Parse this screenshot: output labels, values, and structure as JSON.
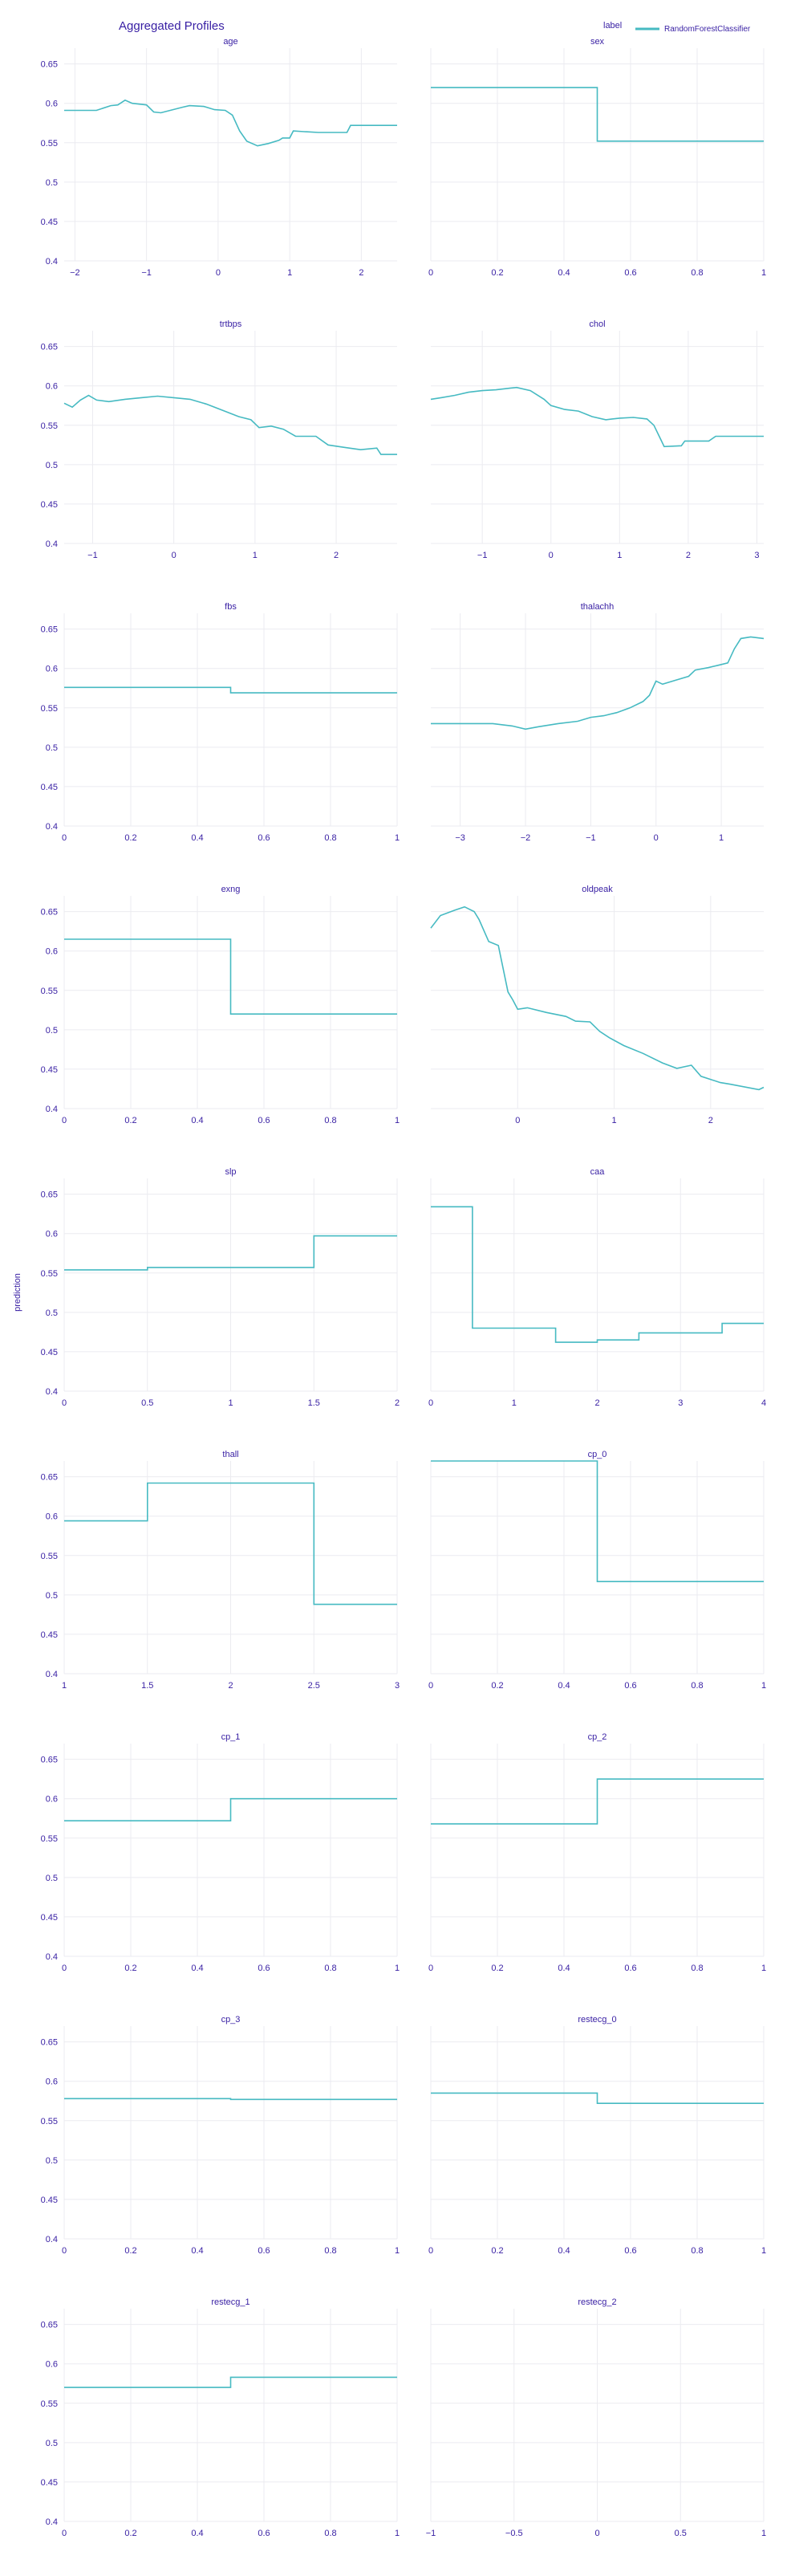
{
  "colors": {
    "series": "#46bac2",
    "text": "#371ea3",
    "grid": "#ebebf0"
  },
  "chart_data": {
    "type": "line",
    "title": "Aggregated Profiles",
    "ylabel": "prediction",
    "legend": {
      "title": "label",
      "position": "top-right",
      "entries": [
        "RandomForestClassifier"
      ]
    },
    "ylim": [
      0.4,
      0.67
    ],
    "yticks": [
      0.4,
      0.45,
      0.5,
      0.55,
      0.6,
      0.65
    ],
    "grid": true,
    "panels": [
      {
        "name": "age",
        "xlim": [
          -2.15,
          2.5
        ],
        "xticks": [
          -2,
          -1,
          0,
          1,
          2
        ],
        "xtick_labels": [
          "−2",
          "−1",
          "0",
          "1",
          "2"
        ],
        "x": [
          -2.15,
          -1.7,
          -1.5,
          -1.4,
          -1.3,
          -1.2,
          -1.0,
          -0.9,
          -0.8,
          -0.5,
          -0.4,
          -0.2,
          -0.05,
          0.1,
          0.2,
          0.3,
          0.4,
          0.55,
          0.7,
          0.85,
          0.9,
          1.0,
          1.05,
          1.2,
          1.4,
          1.8,
          1.85,
          2.5
        ],
        "y": [
          0.591,
          0.591,
          0.597,
          0.598,
          0.604,
          0.6,
          0.598,
          0.589,
          0.588,
          0.595,
          0.597,
          0.596,
          0.592,
          0.591,
          0.585,
          0.565,
          0.552,
          0.546,
          0.549,
          0.553,
          0.556,
          0.556,
          0.565,
          0.564,
          0.563,
          0.563,
          0.572,
          0.572
        ]
      },
      {
        "name": "sex",
        "xlim": [
          0,
          1
        ],
        "xticks": [
          0,
          0.2,
          0.4,
          0.6,
          0.8,
          1
        ],
        "xtick_labels": [
          "0",
          "0.2",
          "0.4",
          "0.6",
          "0.8",
          "1"
        ],
        "step": true,
        "x": [
          0,
          0.5,
          0.5,
          1
        ],
        "y": [
          0.62,
          0.62,
          0.552,
          0.552
        ]
      },
      {
        "name": "trtbps",
        "xlim": [
          -1.35,
          2.75
        ],
        "xticks": [
          -1,
          0,
          1,
          2
        ],
        "xtick_labels": [
          "−1",
          "0",
          "1",
          "2"
        ],
        "x": [
          -1.35,
          -1.25,
          -1.15,
          -1.05,
          -0.95,
          -0.8,
          -0.6,
          -0.4,
          -0.2,
          0.0,
          0.2,
          0.4,
          0.6,
          0.8,
          0.95,
          1.05,
          1.2,
          1.35,
          1.5,
          1.75,
          1.9,
          2.1,
          2.3,
          2.5,
          2.55,
          2.75
        ],
        "y": [
          0.578,
          0.573,
          0.582,
          0.588,
          0.582,
          0.58,
          0.583,
          0.585,
          0.587,
          0.585,
          0.583,
          0.577,
          0.569,
          0.561,
          0.557,
          0.547,
          0.549,
          0.545,
          0.536,
          0.536,
          0.525,
          0.522,
          0.519,
          0.521,
          0.513,
          0.513
        ]
      },
      {
        "name": "chol",
        "xlim": [
          -1.75,
          3.1
        ],
        "xticks": [
          -1,
          0,
          1,
          2,
          3
        ],
        "xtick_labels": [
          "−1",
          "0",
          "1",
          "2",
          "3"
        ],
        "x": [
          -1.75,
          -1.6,
          -1.4,
          -1.2,
          -1.0,
          -0.8,
          -0.6,
          -0.5,
          -0.3,
          -0.1,
          0.0,
          0.2,
          0.4,
          0.6,
          0.8,
          1.0,
          1.2,
          1.4,
          1.5,
          1.6,
          1.65,
          1.9,
          1.95,
          2.3,
          2.4,
          3.1
        ],
        "y": [
          0.583,
          0.585,
          0.588,
          0.592,
          0.594,
          0.595,
          0.597,
          0.598,
          0.594,
          0.583,
          0.575,
          0.57,
          0.568,
          0.561,
          0.557,
          0.559,
          0.56,
          0.558,
          0.55,
          0.532,
          0.523,
          0.524,
          0.53,
          0.53,
          0.536,
          0.536
        ]
      },
      {
        "name": "fbs",
        "xlim": [
          0,
          1
        ],
        "xticks": [
          0,
          0.2,
          0.4,
          0.6,
          0.8,
          1
        ],
        "xtick_labels": [
          "0",
          "0.2",
          "0.4",
          "0.6",
          "0.8",
          "1"
        ],
        "step": true,
        "x": [
          0,
          0.5,
          0.5,
          1
        ],
        "y": [
          0.576,
          0.576,
          0.569,
          0.569
        ]
      },
      {
        "name": "thalachh",
        "xlim": [
          -3.45,
          1.65
        ],
        "xticks": [
          -3,
          -2,
          -1,
          0,
          1
        ],
        "xtick_labels": [
          "−3",
          "−2",
          "−1",
          "0",
          "1"
        ],
        "x": [
          -3.45,
          -2.5,
          -2.3,
          -2.2,
          -2.0,
          -1.8,
          -1.5,
          -1.2,
          -1.0,
          -0.8,
          -0.6,
          -0.4,
          -0.2,
          -0.1,
          0.0,
          0.1,
          0.3,
          0.5,
          0.6,
          0.8,
          0.95,
          1.1,
          1.2,
          1.3,
          1.45,
          1.65
        ],
        "y": [
          0.53,
          0.53,
          0.528,
          0.527,
          0.523,
          0.526,
          0.53,
          0.533,
          0.538,
          0.54,
          0.544,
          0.55,
          0.558,
          0.566,
          0.584,
          0.58,
          0.585,
          0.59,
          0.598,
          0.601,
          0.604,
          0.607,
          0.625,
          0.638,
          0.64,
          0.638
        ]
      },
      {
        "name": "exng",
        "xlim": [
          0,
          1
        ],
        "xticks": [
          0,
          0.2,
          0.4,
          0.6,
          0.8,
          1
        ],
        "xtick_labels": [
          "0",
          "0.2",
          "0.4",
          "0.6",
          "0.8",
          "1"
        ],
        "step": true,
        "x": [
          0,
          0.5,
          0.5,
          1
        ],
        "y": [
          0.615,
          0.615,
          0.52,
          0.52
        ]
      },
      {
        "name": "oldpeak",
        "xlim": [
          -0.9,
          2.55
        ],
        "xticks": [
          0,
          1,
          2
        ],
        "xtick_labels": [
          "0",
          "1",
          "2"
        ],
        "x": [
          -0.9,
          -0.8,
          -0.65,
          -0.55,
          -0.45,
          -0.4,
          -0.3,
          -0.2,
          -0.1,
          -0.05,
          0.0,
          0.1,
          0.3,
          0.5,
          0.6,
          0.75,
          0.85,
          0.95,
          1.1,
          1.3,
          1.5,
          1.65,
          1.8,
          1.9,
          2.1,
          2.2,
          2.5,
          2.55
        ],
        "y": [
          0.629,
          0.645,
          0.652,
          0.656,
          0.65,
          0.64,
          0.612,
          0.607,
          0.548,
          0.538,
          0.526,
          0.528,
          0.522,
          0.517,
          0.511,
          0.51,
          0.498,
          0.49,
          0.48,
          0.47,
          0.458,
          0.451,
          0.455,
          0.441,
          0.433,
          0.431,
          0.424,
          0.427
        ]
      },
      {
        "name": "slp",
        "xlim": [
          0,
          2
        ],
        "xticks": [
          0,
          0.5,
          1,
          1.5,
          2
        ],
        "xtick_labels": [
          "0",
          "0.5",
          "1",
          "1.5",
          "2"
        ],
        "step": true,
        "x": [
          0,
          0.5,
          0.5,
          1.5,
          1.5,
          2
        ],
        "y": [
          0.554,
          0.554,
          0.557,
          0.557,
          0.597,
          0.597
        ]
      },
      {
        "name": "caa",
        "xlim": [
          0,
          4
        ],
        "xticks": [
          0,
          1,
          2,
          3,
          4
        ],
        "xtick_labels": [
          "0",
          "1",
          "2",
          "3",
          "4"
        ],
        "step": true,
        "x": [
          0,
          0.5,
          0.5,
          1.5,
          1.5,
          2.0,
          2.0,
          2.5,
          2.5,
          3.5,
          3.5,
          4
        ],
        "y": [
          0.634,
          0.634,
          0.48,
          0.48,
          0.462,
          0.462,
          0.465,
          0.465,
          0.474,
          0.474,
          0.486,
          0.486
        ]
      },
      {
        "name": "thall",
        "xlim": [
          1,
          3
        ],
        "xticks": [
          1,
          1.5,
          2,
          2.5,
          3
        ],
        "xtick_labels": [
          "1",
          "1.5",
          "2",
          "2.5",
          "3"
        ],
        "step": true,
        "x": [
          1,
          1.5,
          1.5,
          2.5,
          2.5,
          3
        ],
        "y": [
          0.594,
          0.594,
          0.642,
          0.642,
          0.488,
          0.488
        ]
      },
      {
        "name": "cp_0",
        "xlim": [
          0,
          1
        ],
        "xticks": [
          0,
          0.2,
          0.4,
          0.6,
          0.8,
          1
        ],
        "xtick_labels": [
          "0",
          "0.2",
          "0.4",
          "0.6",
          "0.8",
          "1"
        ],
        "step": true,
        "x": [
          0,
          0.5,
          0.5,
          1
        ],
        "y": [
          0.67,
          0.67,
          0.517,
          0.517
        ]
      },
      {
        "name": "cp_1",
        "xlim": [
          0,
          1
        ],
        "xticks": [
          0,
          0.2,
          0.4,
          0.6,
          0.8,
          1
        ],
        "xtick_labels": [
          "0",
          "0.2",
          "0.4",
          "0.6",
          "0.8",
          "1"
        ],
        "step": true,
        "x": [
          0,
          0.5,
          0.5,
          1
        ],
        "y": [
          0.572,
          0.572,
          0.6,
          0.6
        ]
      },
      {
        "name": "cp_2",
        "xlim": [
          0,
          1
        ],
        "xticks": [
          0,
          0.2,
          0.4,
          0.6,
          0.8,
          1
        ],
        "xtick_labels": [
          "0",
          "0.2",
          "0.4",
          "0.6",
          "0.8",
          "1"
        ],
        "step": true,
        "x": [
          0,
          0.5,
          0.5,
          1
        ],
        "y": [
          0.568,
          0.568,
          0.625,
          0.625
        ]
      },
      {
        "name": "cp_3",
        "xlim": [
          0,
          1
        ],
        "xticks": [
          0,
          0.2,
          0.4,
          0.6,
          0.8,
          1
        ],
        "xtick_labels": [
          "0",
          "0.2",
          "0.4",
          "0.6",
          "0.8",
          "1"
        ],
        "step": true,
        "x": [
          0,
          0.5,
          0.5,
          1
        ],
        "y": [
          0.578,
          0.578,
          0.577,
          0.577
        ]
      },
      {
        "name": "restecg_0",
        "xlim": [
          0,
          1
        ],
        "xticks": [
          0,
          0.2,
          0.4,
          0.6,
          0.8,
          1
        ],
        "xtick_labels": [
          "0",
          "0.2",
          "0.4",
          "0.6",
          "0.8",
          "1"
        ],
        "step": true,
        "x": [
          0,
          0.5,
          0.5,
          1
        ],
        "y": [
          0.585,
          0.585,
          0.572,
          0.572
        ]
      },
      {
        "name": "restecg_1",
        "xlim": [
          0,
          1
        ],
        "xticks": [
          0,
          0.2,
          0.4,
          0.6,
          0.8,
          1
        ],
        "xtick_labels": [
          "0",
          "0.2",
          "0.4",
          "0.6",
          "0.8",
          "1"
        ],
        "step": true,
        "x": [
          0,
          0.5,
          0.5,
          1
        ],
        "y": [
          0.57,
          0.57,
          0.583,
          0.583
        ]
      },
      {
        "name": "restecg_2",
        "xlim": [
          -1,
          1
        ],
        "xticks": [
          -1,
          -0.5,
          0,
          0.5,
          1
        ],
        "xtick_labels": [
          "−1",
          "−0.5",
          "0",
          "0.5",
          "1"
        ],
        "step": true,
        "x": [],
        "y": []
      }
    ]
  }
}
